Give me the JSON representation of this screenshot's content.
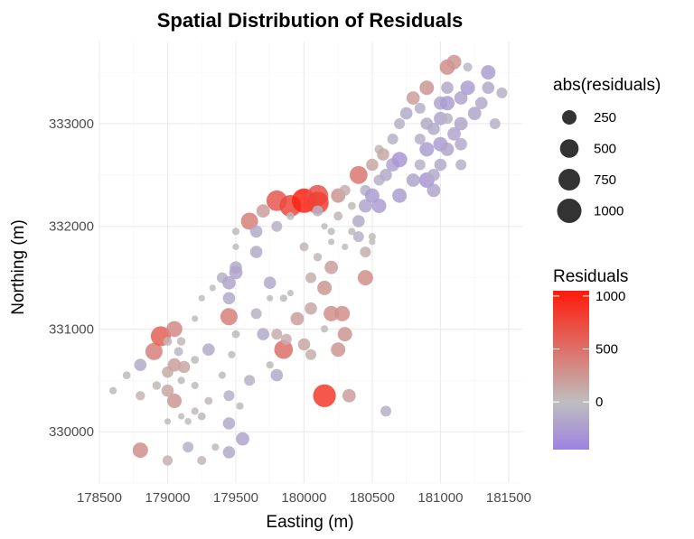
{
  "chart_data": {
    "type": "scatter",
    "title": "Spatial Distribution of Residuals",
    "xlabel": "Easting (m)",
    "ylabel": "Northing (m)",
    "xlim": [
      178500,
      181600
    ],
    "ylim": [
      329500,
      333800
    ],
    "x_ticks": [
      178500,
      179000,
      179500,
      180000,
      180500,
      181000,
      181500
    ],
    "x_tick_labels": [
      "178500",
      "179000",
      "179500",
      "180000",
      "180500",
      "181000",
      "181500"
    ],
    "y_ticks": [
      330000,
      331000,
      332000,
      333000
    ],
    "y_tick_labels": [
      "330000",
      "331000",
      "332000",
      "333000"
    ],
    "grid": true,
    "legend_placement": "right",
    "size_legend": {
      "title": "abs(residuals)",
      "values": [
        250,
        500,
        750,
        1000
      ],
      "labels": [
        "250",
        "500",
        "750",
        "1000"
      ]
    },
    "color_legend": {
      "title": "Residuals",
      "range": [
        -450,
        1050
      ],
      "ticks": [
        0,
        500,
        1000
      ],
      "tick_labels": [
        "0",
        "500",
        "1000"
      ],
      "low_color": "#9e83e0",
      "mid_color": "#bebebe",
      "high_color": "#ff1a0a"
    },
    "points": [
      {
        "x": 178600,
        "y": 330400,
        "r": 20
      },
      {
        "x": 178700,
        "y": 330550,
        "r": 30
      },
      {
        "x": 178800,
        "y": 329820,
        "r": 300
      },
      {
        "x": 178800,
        "y": 330350,
        "r": 60
      },
      {
        "x": 178800,
        "y": 330650,
        "r": -150
      },
      {
        "x": 178900,
        "y": 330780,
        "r": 400
      },
      {
        "x": 178920,
        "y": 330450,
        "r": 40
      },
      {
        "x": 178950,
        "y": 330930,
        "r": 600
      },
      {
        "x": 179000,
        "y": 330580,
        "r": 120
      },
      {
        "x": 179000,
        "y": 330400,
        "r": 150
      },
      {
        "x": 179000,
        "y": 330100,
        "r": 10
      },
      {
        "x": 179000,
        "y": 329720,
        "r": 80
      },
      {
        "x": 179000,
        "y": 330880,
        "r": 50
      },
      {
        "x": 179050,
        "y": 331000,
        "r": 330
      },
      {
        "x": 179050,
        "y": 330650,
        "r": 200
      },
      {
        "x": 179050,
        "y": 330300,
        "r": 250
      },
      {
        "x": 179080,
        "y": 330780,
        "r": -50
      },
      {
        "x": 179100,
        "y": 330880,
        "r": 40
      },
      {
        "x": 179100,
        "y": 330500,
        "r": 20
      },
      {
        "x": 179100,
        "y": 330150,
        "r": 10
      },
      {
        "x": 179120,
        "y": 330630,
        "r": 150
      },
      {
        "x": 179150,
        "y": 330100,
        "r": 15
      },
      {
        "x": 179150,
        "y": 329850,
        "r": -100
      },
      {
        "x": 179200,
        "y": 331100,
        "r": 10
      },
      {
        "x": 179200,
        "y": 330700,
        "r": 30
      },
      {
        "x": 179200,
        "y": 330450,
        "r": -20
      },
      {
        "x": 179200,
        "y": 330200,
        "r": 20
      },
      {
        "x": 179250,
        "y": 330150,
        "r": -30
      },
      {
        "x": 179250,
        "y": 329720,
        "r": 50
      },
      {
        "x": 179250,
        "y": 331300,
        "r": 10
      },
      {
        "x": 179300,
        "y": 330800,
        "r": -150
      },
      {
        "x": 179300,
        "y": 330300,
        "r": 30
      },
      {
        "x": 179330,
        "y": 331400,
        "r": 10
      },
      {
        "x": 179350,
        "y": 329850,
        "r": 20
      },
      {
        "x": 179400,
        "y": 331500,
        "r": -100
      },
      {
        "x": 179400,
        "y": 330550,
        "r": 20
      },
      {
        "x": 179450,
        "y": 331450,
        "r": -200
      },
      {
        "x": 179450,
        "y": 331300,
        "r": -150
      },
      {
        "x": 179450,
        "y": 331120,
        "r": 400
      },
      {
        "x": 179450,
        "y": 330350,
        "r": -100
      },
      {
        "x": 179450,
        "y": 330080,
        "r": -150
      },
      {
        "x": 179450,
        "y": 329800,
        "r": -150
      },
      {
        "x": 179470,
        "y": 330750,
        "r": 20
      },
      {
        "x": 179500,
        "y": 331600,
        "r": -150
      },
      {
        "x": 179500,
        "y": 331550,
        "r": -200
      },
      {
        "x": 179500,
        "y": 331950,
        "r": 20
      },
      {
        "x": 179500,
        "y": 331800,
        "r": 10
      },
      {
        "x": 179500,
        "y": 330950,
        "r": 30
      },
      {
        "x": 179530,
        "y": 330250,
        "r": 20
      },
      {
        "x": 179550,
        "y": 329930,
        "r": -200
      },
      {
        "x": 179600,
        "y": 332050,
        "r": 400
      },
      {
        "x": 179600,
        "y": 330500,
        "r": -100
      },
      {
        "x": 179650,
        "y": 331950,
        "r": -150
      },
      {
        "x": 179650,
        "y": 331750,
        "r": -150
      },
      {
        "x": 179650,
        "y": 331150,
        "r": -100
      },
      {
        "x": 179700,
        "y": 332150,
        "r": 200
      },
      {
        "x": 179700,
        "y": 330950,
        "r": -150
      },
      {
        "x": 179750,
        "y": 331450,
        "r": -150
      },
      {
        "x": 179750,
        "y": 331300,
        "r": 10
      },
      {
        "x": 179750,
        "y": 330650,
        "r": 20
      },
      {
        "x": 179800,
        "y": 332250,
        "r": 650
      },
      {
        "x": 179800,
        "y": 332000,
        "r": -100
      },
      {
        "x": 179800,
        "y": 330950,
        "r": 100
      },
      {
        "x": 179800,
        "y": 330550,
        "r": -150
      },
      {
        "x": 179850,
        "y": 330800,
        "r": 500
      },
      {
        "x": 179850,
        "y": 331300,
        "r": 20
      },
      {
        "x": 179870,
        "y": 330900,
        "r": 100
      },
      {
        "x": 179900,
        "y": 332200,
        "r": 750
      },
      {
        "x": 179900,
        "y": 332100,
        "r": -30
      },
      {
        "x": 179900,
        "y": 331350,
        "r": 10
      },
      {
        "x": 179950,
        "y": 331100,
        "r": 200
      },
      {
        "x": 180000,
        "y": 332250,
        "r": 1000
      },
      {
        "x": 180000,
        "y": 331800,
        "r": 50
      },
      {
        "x": 180000,
        "y": 330850,
        "r": 150
      },
      {
        "x": 180050,
        "y": 331500,
        "r": 100
      },
      {
        "x": 180050,
        "y": 331200,
        "r": 150
      },
      {
        "x": 180050,
        "y": 330750,
        "r": 100
      },
      {
        "x": 180100,
        "y": 332300,
        "r": 700
      },
      {
        "x": 180100,
        "y": 332230,
        "r": 800
      },
      {
        "x": 180100,
        "y": 332150,
        "r": -100
      },
      {
        "x": 180100,
        "y": 331700,
        "r": 40
      },
      {
        "x": 180150,
        "y": 331400,
        "r": 250
      },
      {
        "x": 180150,
        "y": 331000,
        "r": 20
      },
      {
        "x": 180150,
        "y": 330350,
        "r": 850
      },
      {
        "x": 180150,
        "y": 332000,
        "r": 10
      },
      {
        "x": 180200,
        "y": 331950,
        "r": 20
      },
      {
        "x": 180200,
        "y": 331600,
        "r": 200
      },
      {
        "x": 180200,
        "y": 331150,
        "r": 300
      },
      {
        "x": 180200,
        "y": 331850,
        "r": 10
      },
      {
        "x": 180250,
        "y": 332300,
        "r": 250
      },
      {
        "x": 180250,
        "y": 332100,
        "r": 50
      },
      {
        "x": 180250,
        "y": 330800,
        "r": 250
      },
      {
        "x": 180280,
        "y": 331150,
        "r": 300
      },
      {
        "x": 180300,
        "y": 330950,
        "r": 250
      },
      {
        "x": 180300,
        "y": 332350,
        "r": 100
      },
      {
        "x": 180300,
        "y": 331800,
        "r": 10
      },
      {
        "x": 180330,
        "y": 330350,
        "r": 200
      },
      {
        "x": 180350,
        "y": 332200,
        "r": 30
      },
      {
        "x": 180350,
        "y": 331950,
        "r": 20
      },
      {
        "x": 180400,
        "y": 332500,
        "r": 450
      },
      {
        "x": 180400,
        "y": 332050,
        "r": -150
      },
      {
        "x": 180400,
        "y": 331900,
        "r": -100
      },
      {
        "x": 180450,
        "y": 332350,
        "r": -100
      },
      {
        "x": 180450,
        "y": 332200,
        "r": -200
      },
      {
        "x": 180450,
        "y": 331750,
        "r": 100
      },
      {
        "x": 180450,
        "y": 331500,
        "r": 300
      },
      {
        "x": 180500,
        "y": 332600,
        "r": 150
      },
      {
        "x": 180500,
        "y": 332300,
        "r": -250
      },
      {
        "x": 180500,
        "y": 331900,
        "r": 20
      },
      {
        "x": 180500,
        "y": 331850,
        "r": 10
      },
      {
        "x": 180550,
        "y": 332750,
        "r": 50
      },
      {
        "x": 180550,
        "y": 332450,
        "r": -100
      },
      {
        "x": 180550,
        "y": 332200,
        "r": -250
      },
      {
        "x": 180580,
        "y": 332700,
        "r": 150
      },
      {
        "x": 180600,
        "y": 332500,
        "r": -150
      },
      {
        "x": 180600,
        "y": 330200,
        "r": -100
      },
      {
        "x": 180650,
        "y": 332850,
        "r": -100
      },
      {
        "x": 180650,
        "y": 332600,
        "r": -200
      },
      {
        "x": 180700,
        "y": 332650,
        "r": -300
      },
      {
        "x": 180700,
        "y": 332300,
        "r": -250
      },
      {
        "x": 180700,
        "y": 333000,
        "r": -100
      },
      {
        "x": 180750,
        "y": 333100,
        "r": -150
      },
      {
        "x": 180800,
        "y": 333250,
        "r": 200
      },
      {
        "x": 180800,
        "y": 332450,
        "r": -200
      },
      {
        "x": 180850,
        "y": 333150,
        "r": -100
      },
      {
        "x": 180850,
        "y": 332850,
        "r": -100
      },
      {
        "x": 180850,
        "y": 332600,
        "r": -100
      },
      {
        "x": 180900,
        "y": 333350,
        "r": 250
      },
      {
        "x": 180900,
        "y": 333000,
        "r": -150
      },
      {
        "x": 180900,
        "y": 332750,
        "r": -250
      },
      {
        "x": 180900,
        "y": 332450,
        "r": -300
      },
      {
        "x": 180950,
        "y": 332950,
        "r": -150
      },
      {
        "x": 180950,
        "y": 332500,
        "r": -150
      },
      {
        "x": 180950,
        "y": 332350,
        "r": -200
      },
      {
        "x": 181000,
        "y": 333200,
        "r": -200
      },
      {
        "x": 181000,
        "y": 333050,
        "r": -200
      },
      {
        "x": 181000,
        "y": 332800,
        "r": -250
      },
      {
        "x": 181000,
        "y": 332600,
        "r": -150
      },
      {
        "x": 181050,
        "y": 333550,
        "r": 300
      },
      {
        "x": 181050,
        "y": 333350,
        "r": -150
      },
      {
        "x": 181050,
        "y": 333200,
        "r": -250
      },
      {
        "x": 181050,
        "y": 333050,
        "r": -100
      },
      {
        "x": 181050,
        "y": 332750,
        "r": -200
      },
      {
        "x": 181100,
        "y": 333600,
        "r": 250
      },
      {
        "x": 181100,
        "y": 332900,
        "r": -200
      },
      {
        "x": 181150,
        "y": 333250,
        "r": -200
      },
      {
        "x": 181150,
        "y": 333000,
        "r": -200
      },
      {
        "x": 181150,
        "y": 332800,
        "r": -150
      },
      {
        "x": 181150,
        "y": 332600,
        "r": -100
      },
      {
        "x": 181200,
        "y": 333350,
        "r": -250
      },
      {
        "x": 181200,
        "y": 333550,
        "r": -50
      },
      {
        "x": 181250,
        "y": 333100,
        "r": -200
      },
      {
        "x": 181300,
        "y": 333200,
        "r": -150
      },
      {
        "x": 181350,
        "y": 333500,
        "r": -250
      },
      {
        "x": 181350,
        "y": 333350,
        "r": -150
      },
      {
        "x": 181400,
        "y": 333000,
        "r": -100
      },
      {
        "x": 181450,
        "y": 333300,
        "r": -100
      }
    ]
  }
}
